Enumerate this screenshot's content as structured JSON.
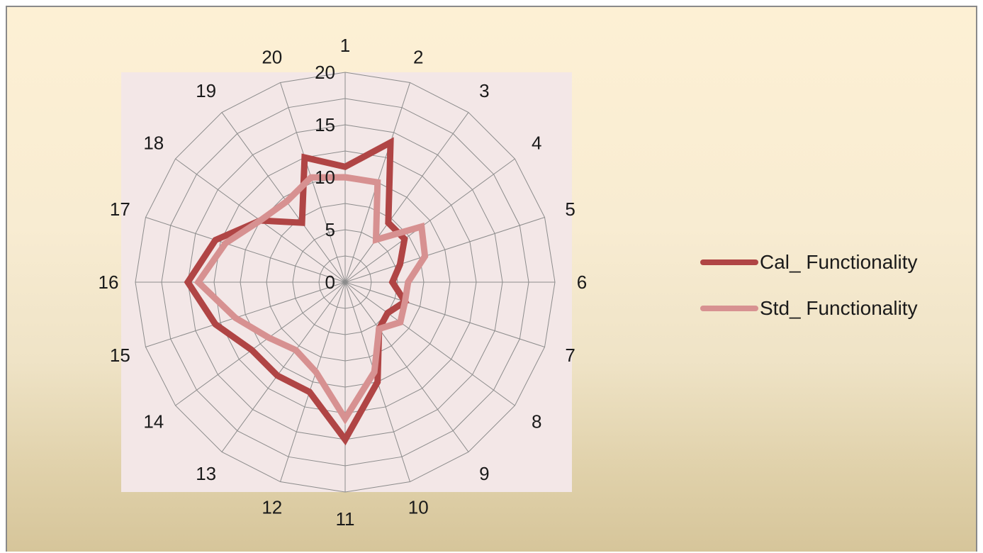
{
  "chart_data": {
    "type": "radar",
    "categories": [
      "1",
      "2",
      "3",
      "4",
      "5",
      "6",
      "7",
      "8",
      "9",
      "10",
      "11",
      "12",
      "13",
      "14",
      "15",
      "16",
      "17",
      "18",
      "19",
      "20"
    ],
    "rlim": [
      0,
      20
    ],
    "rticks": [
      "0",
      "5",
      "10",
      "15",
      "20"
    ],
    "grid": true,
    "legend_position": "right",
    "series": [
      {
        "name": "Cal_ Functionality",
        "color": "#b04545",
        "values": [
          11,
          14,
          7,
          7,
          5.5,
          4.5,
          6,
          5,
          5.5,
          10,
          15,
          11,
          11,
          11,
          13,
          15,
          13,
          10,
          7,
          12.5
        ]
      },
      {
        "name": "Std_ Functionality",
        "color": "#d79191",
        "values": [
          10,
          10,
          5,
          9,
          8,
          6,
          6,
          6.5,
          5.5,
          9,
          13,
          9,
          8,
          9,
          11,
          14,
          12,
          10,
          9.5,
          10.5
        ]
      }
    ]
  }
}
